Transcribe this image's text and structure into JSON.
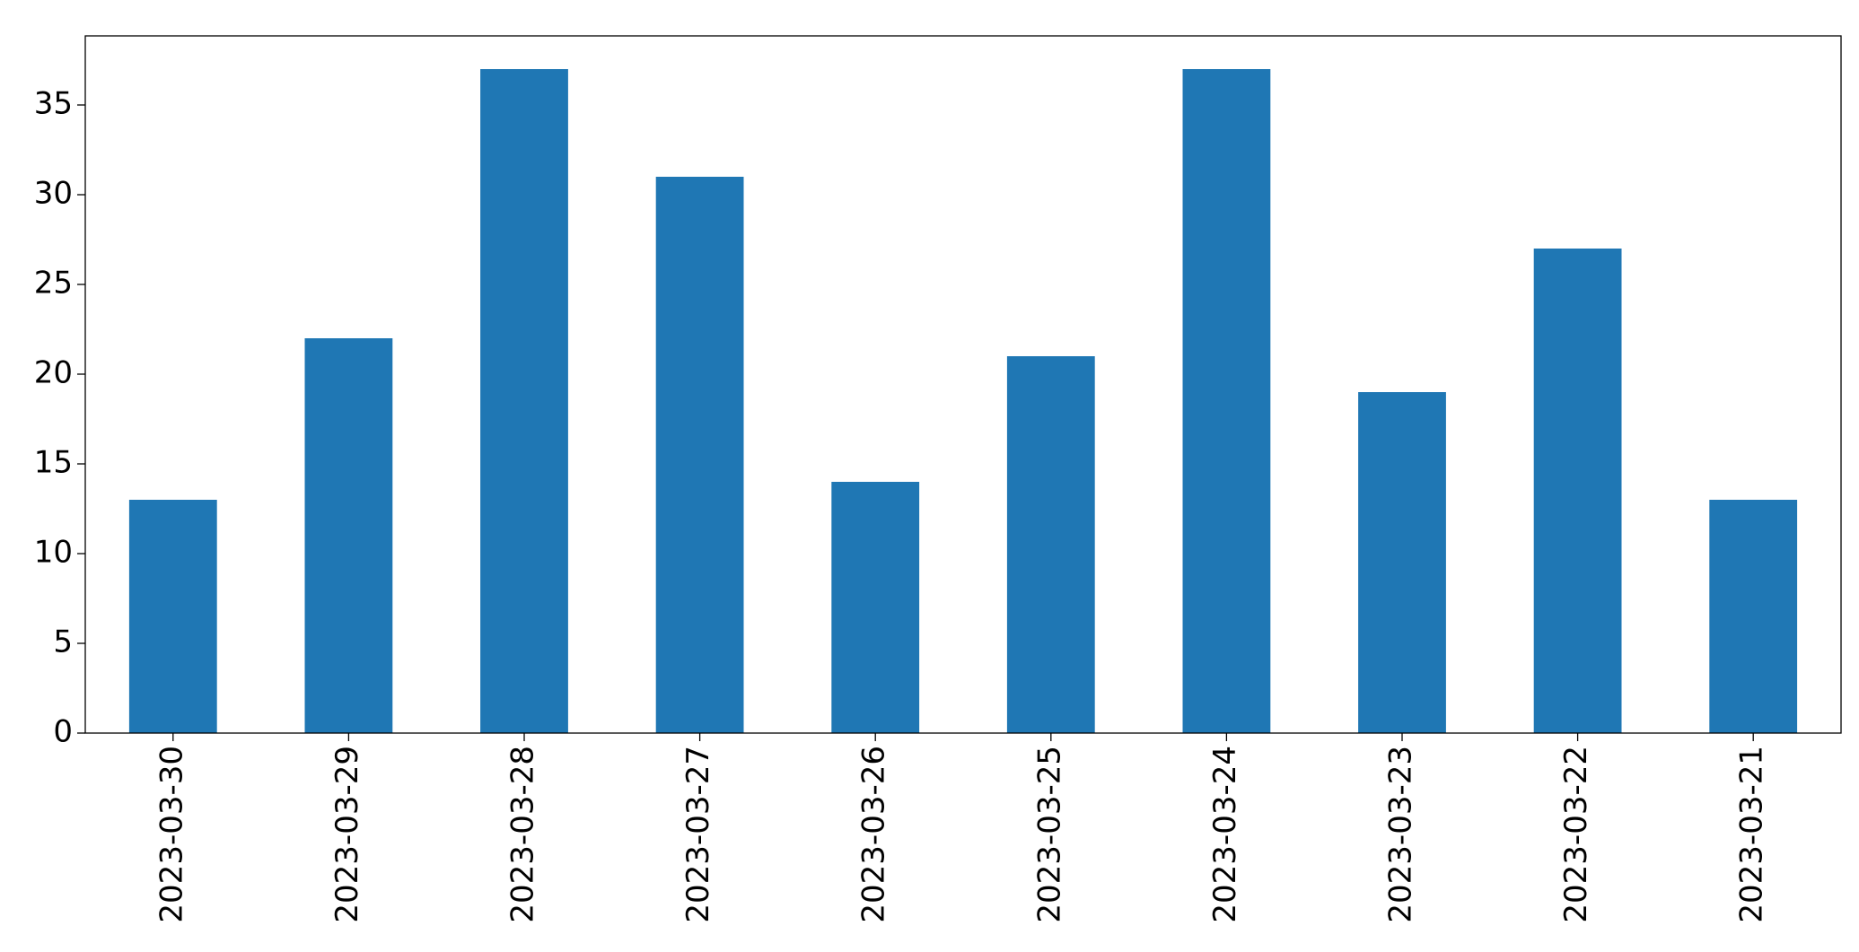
{
  "chart_data": {
    "type": "bar",
    "categories": [
      "2023-03-30",
      "2023-03-29",
      "2023-03-28",
      "2023-03-27",
      "2023-03-26",
      "2023-03-25",
      "2023-03-24",
      "2023-03-23",
      "2023-03-22",
      "2023-03-21"
    ],
    "values": [
      13,
      22,
      37,
      31,
      14,
      21,
      37,
      19,
      27,
      13
    ],
    "color": "#1f77b4",
    "ylim": [
      0,
      38.85
    ],
    "yticks": [
      0,
      5,
      10,
      15,
      20,
      25,
      30,
      35
    ],
    "grid": false
  }
}
